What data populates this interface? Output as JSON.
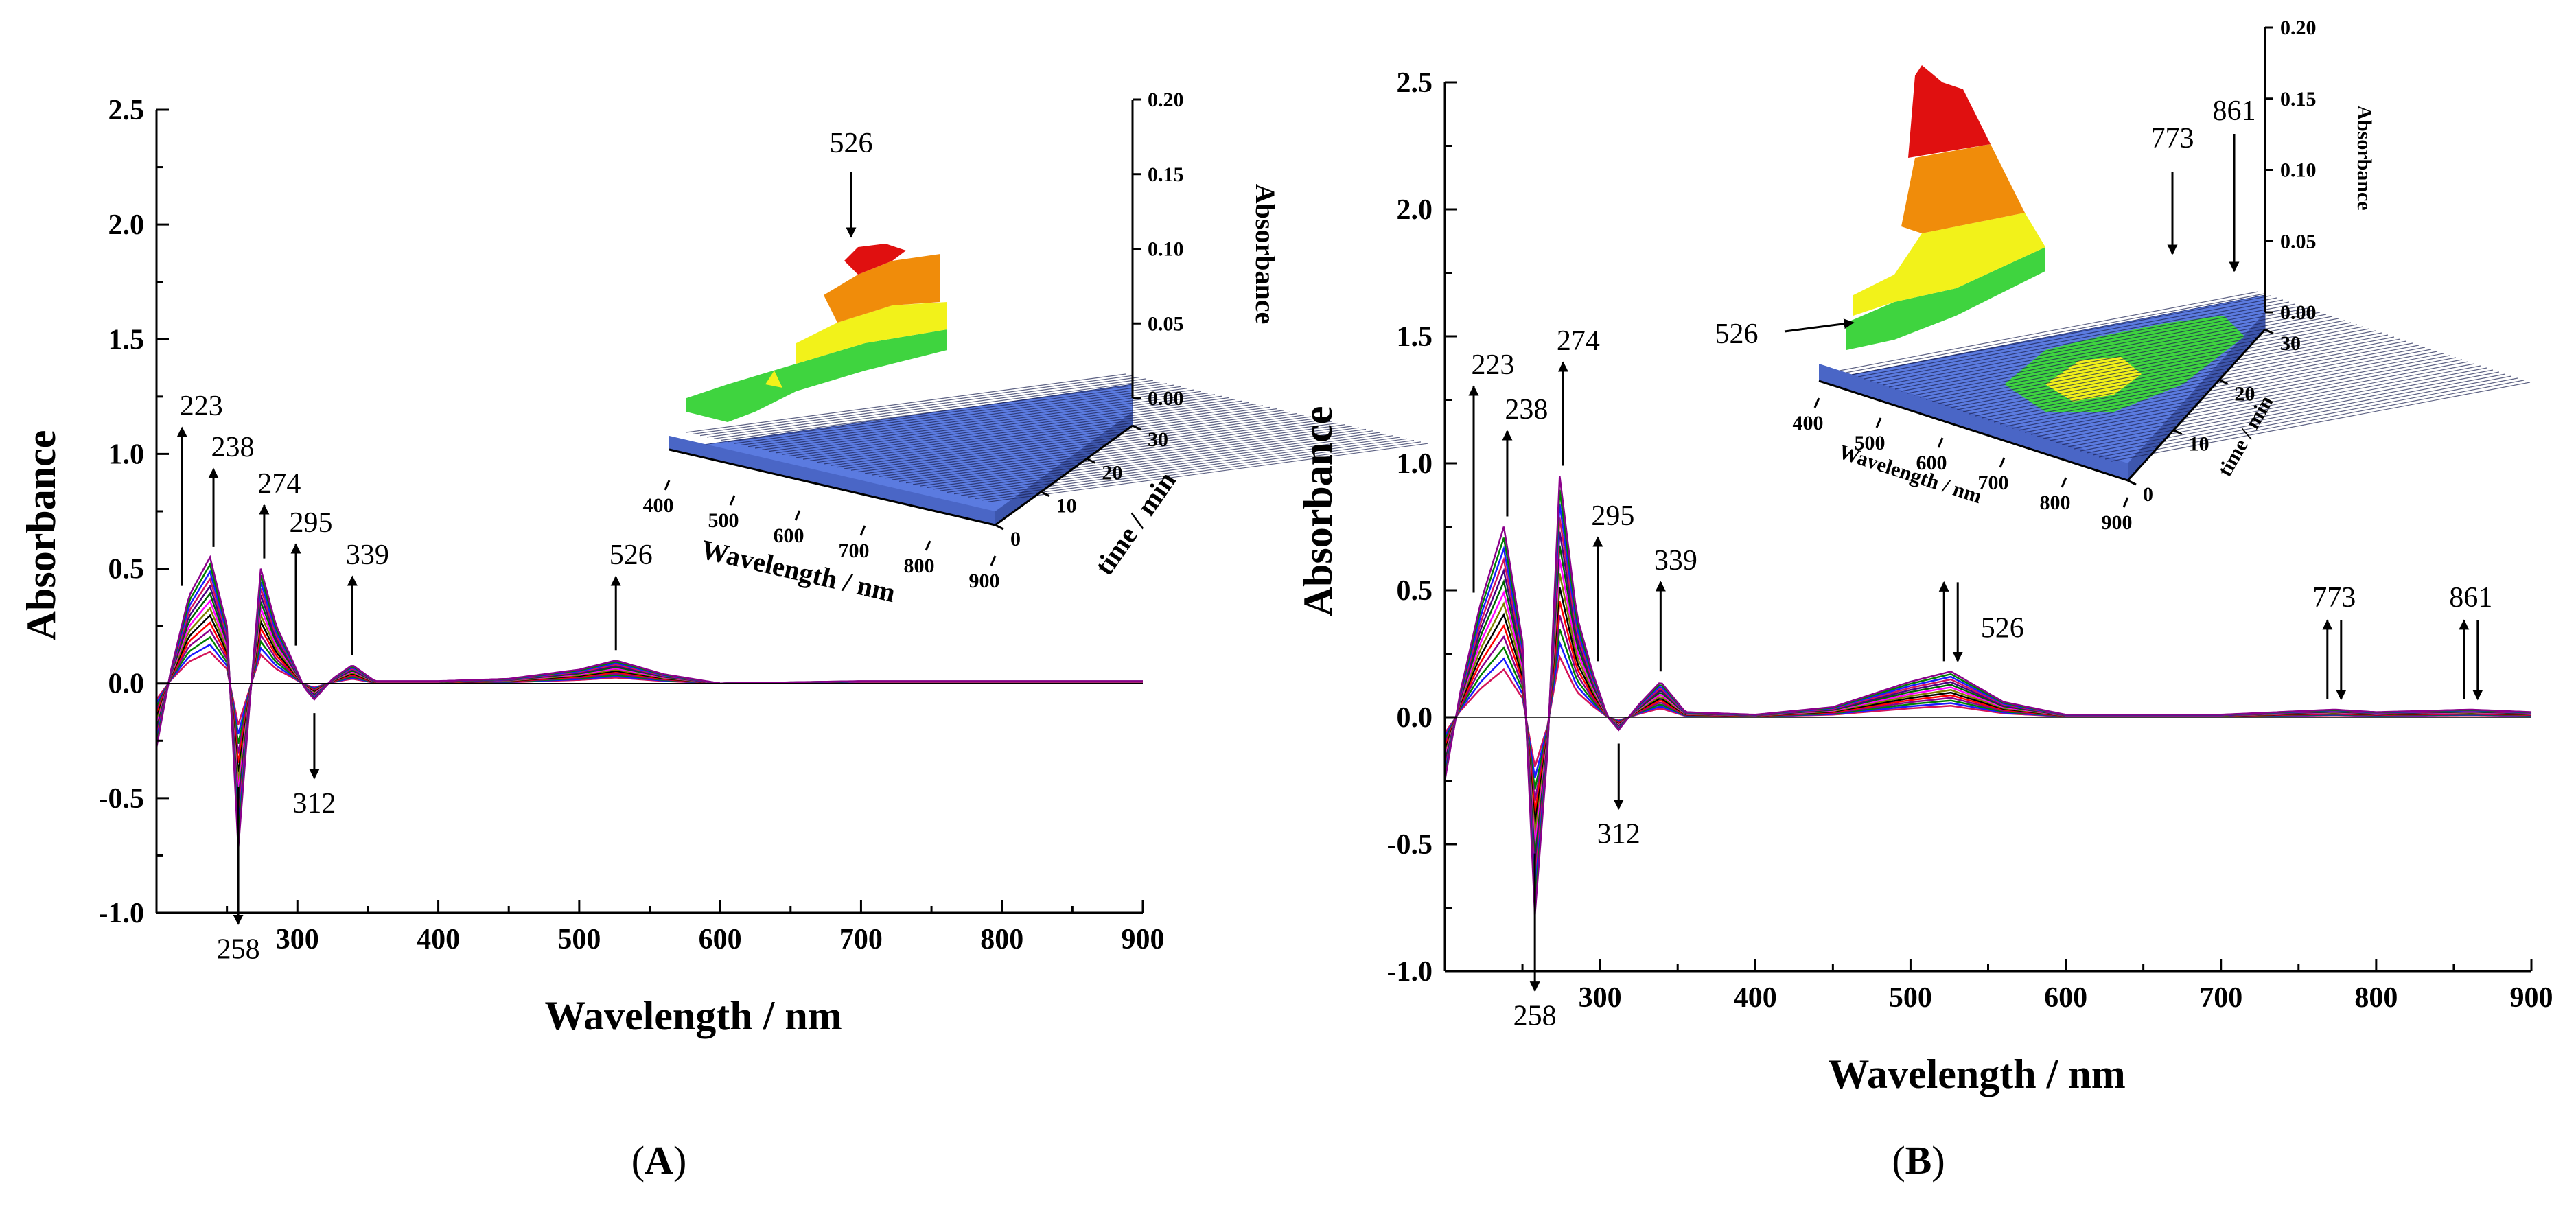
{
  "chart_data": [
    {
      "type": "line",
      "panel_label": "A",
      "xlabel": "Wavelength / nm",
      "ylabel": "Absorbance",
      "xlim": [
        200,
        900
      ],
      "ylim": [
        -1.0,
        2.5
      ],
      "xticks": [
        "300",
        "400",
        "500",
        "600",
        "700",
        "800",
        "900"
      ],
      "yticks": [
        "-1.0",
        "-0.5",
        "0.0",
        "0.5",
        "1.0",
        "1.5",
        "2.0",
        "2.5"
      ],
      "peak_annotations": [
        {
          "label": "223",
          "x": 223,
          "direction": "up"
        },
        {
          "label": "238",
          "x": 238,
          "direction": "up"
        },
        {
          "label": "274",
          "x": 274,
          "direction": "up"
        },
        {
          "label": "295",
          "x": 295,
          "direction": "up"
        },
        {
          "label": "339",
          "x": 339,
          "direction": "up"
        },
        {
          "label": "258",
          "x": 258,
          "direction": "down"
        },
        {
          "label": "312",
          "x": 312,
          "direction": "down"
        },
        {
          "label": "526",
          "x": 526,
          "direction": "up"
        }
      ],
      "series_max": {
        "x": [
          200,
          210,
          223,
          238,
          250,
          258,
          266,
          274,
          285,
          295,
          305,
          312,
          325,
          339,
          355,
          400,
          450,
          500,
          526,
          560,
          600,
          700,
          800,
          900
        ],
        "y": [
          -0.28,
          0.05,
          0.38,
          0.55,
          0.25,
          -0.72,
          -0.1,
          0.5,
          0.25,
          0.12,
          -0.02,
          -0.07,
          0.02,
          0.08,
          0.01,
          0.01,
          0.02,
          0.06,
          0.1,
          0.04,
          0.0,
          0.01,
          0.01,
          0.01
        ]
      },
      "inset": {
        "type": "surface3d",
        "annotation": "526",
        "xlabel": "Wavelength / nm",
        "ylabel": "time / min",
        "zlabel": "Absorbance",
        "xticks": [
          "400",
          "500",
          "600",
          "700",
          "800",
          "900"
        ],
        "yticks": [
          "0",
          "10",
          "20",
          "30"
        ],
        "zticks": [
          "0.00",
          "0.05",
          "0.10",
          "0.15",
          "0.20"
        ]
      }
    },
    {
      "type": "line",
      "panel_label": "B",
      "xlabel": "Wavelength / nm",
      "ylabel": "Absorbance",
      "xlim": [
        200,
        900
      ],
      "ylim": [
        -1.0,
        2.5
      ],
      "xticks": [
        "300",
        "400",
        "500",
        "600",
        "700",
        "800",
        "900"
      ],
      "yticks": [
        "-1.0",
        "-0.5",
        "0.0",
        "0.5",
        "1.0",
        "1.5",
        "2.0",
        "2.5"
      ],
      "peak_annotations": [
        {
          "label": "223",
          "x": 223,
          "direction": "up"
        },
        {
          "label": "238",
          "x": 238,
          "direction": "up"
        },
        {
          "label": "274",
          "x": 274,
          "direction": "up"
        },
        {
          "label": "295",
          "x": 295,
          "direction": "up"
        },
        {
          "label": "339",
          "x": 339,
          "direction": "up"
        },
        {
          "label": "258",
          "x": 258,
          "direction": "down"
        },
        {
          "label": "312",
          "x": 312,
          "direction": "down"
        },
        {
          "label": "526",
          "x": 526,
          "direction": "both"
        },
        {
          "label": "773",
          "x": 773,
          "direction": "both"
        },
        {
          "label": "861",
          "x": 861,
          "direction": "both"
        }
      ],
      "series_max": {
        "x": [
          200,
          210,
          223,
          238,
          250,
          258,
          266,
          274,
          285,
          295,
          305,
          312,
          325,
          339,
          355,
          400,
          450,
          500,
          526,
          560,
          600,
          700,
          773,
          800,
          861,
          900
        ],
        "y": [
          -0.25,
          0.1,
          0.45,
          0.75,
          0.3,
          -0.78,
          -0.15,
          0.95,
          0.4,
          0.18,
          0.0,
          -0.05,
          0.05,
          0.14,
          0.02,
          0.01,
          0.04,
          0.14,
          0.18,
          0.06,
          0.01,
          0.01,
          0.03,
          0.02,
          0.03,
          0.02
        ]
      },
      "inset": {
        "type": "surface3d",
        "annotation": "526",
        "extra_annotations": [
          "773",
          "861"
        ],
        "xlabel": "Wavelength / nm",
        "ylabel": "time / min",
        "zlabel": "Absorbance",
        "xticks": [
          "400",
          "500",
          "600",
          "700",
          "800",
          "900"
        ],
        "yticks": [
          "0",
          "10",
          "20",
          "30"
        ],
        "zticks": [
          "0.00",
          "0.05",
          "0.10",
          "0.15",
          "0.20"
        ]
      }
    }
  ],
  "colors": {
    "surface_base": "#5b7be0",
    "surface_green": "#3fd43f",
    "surface_yellow": "#f2f21a",
    "surface_orange": "#f08c0a",
    "surface_red": "#e01010",
    "curve_palette": [
      "#d4145a",
      "#1a1aff",
      "#008000",
      "#8b008b",
      "#ff0000",
      "#000000",
      "#808000",
      "#ff00ff",
      "#006400",
      "#4b0082"
    ]
  }
}
